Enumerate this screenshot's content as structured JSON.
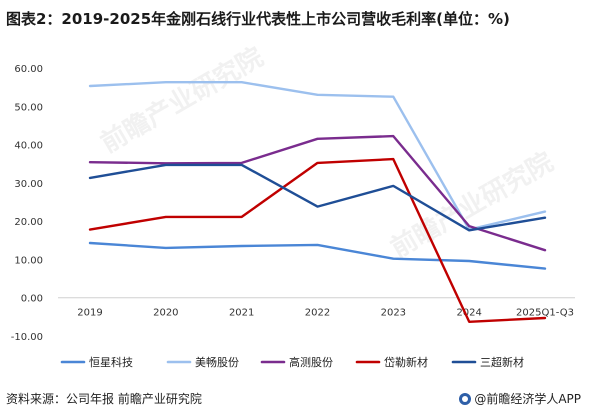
{
  "title": "图表2：2019-2025年金刚石线行业代表性上市公司营收毛利率(单位：%)",
  "footer": {
    "source": "资料来源：公司年报 前瞻产业研究院",
    "brand": "@前瞻经济学人APP"
  },
  "watermark_text": "前瞻产业研究院",
  "chart_data": {
    "type": "line",
    "categories": [
      "2019",
      "2020",
      "2021",
      "2022",
      "2023",
      "2024",
      "2025Q1-Q3"
    ],
    "y_ticks": [
      "60.00",
      "50.00",
      "40.00",
      "30.00",
      "20.00",
      "10.00",
      "0.00",
      "-10.00"
    ],
    "ylim": [
      -10,
      60
    ],
    "grid": false,
    "legend_position": "bottom",
    "series": [
      {
        "name": "恒星科技",
        "color": "#4a86d6",
        "values": [
          14.3,
          13.0,
          13.5,
          13.8,
          10.2,
          9.6,
          7.6
        ]
      },
      {
        "name": "美畅股份",
        "color": "#9cc0ee",
        "values": [
          55.3,
          56.3,
          56.3,
          53.0,
          52.5,
          17.8,
          22.5
        ]
      },
      {
        "name": "高测股份",
        "color": "#7a2c8e",
        "values": [
          35.4,
          35.1,
          35.2,
          41.5,
          42.2,
          18.7,
          12.4
        ]
      },
      {
        "name": "岱勒新材",
        "color": "#c00000",
        "values": [
          17.8,
          21.1,
          21.1,
          35.2,
          36.2,
          -6.3,
          -5.3
        ]
      },
      {
        "name": "三超新材",
        "color": "#1f4e96",
        "values": [
          31.3,
          34.7,
          34.7,
          23.8,
          29.2,
          17.6,
          20.9
        ]
      }
    ]
  }
}
